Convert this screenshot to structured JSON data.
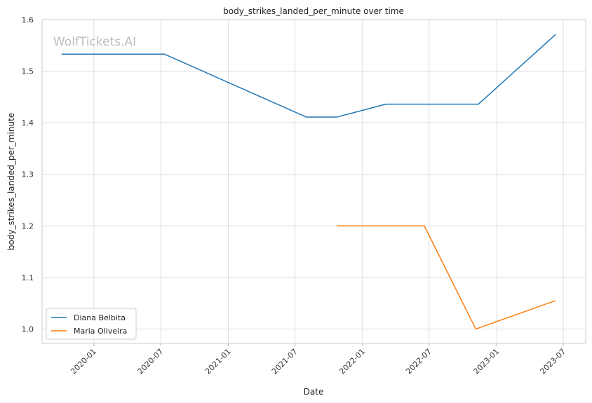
{
  "chart_data": {
    "type": "line",
    "title": "body_strikes_landed_per_minute over time",
    "xlabel": "Date",
    "ylabel": "body_strikes_landed_per_minute",
    "watermark": "WolfTickets.AI",
    "xlim": [
      "2019-08-13",
      "2023-08-31"
    ],
    "ylim": [
      0.972,
      1.6
    ],
    "x_ticks": [
      "2020-01",
      "2020-07",
      "2021-01",
      "2021-07",
      "2022-01",
      "2022-07",
      "2023-01",
      "2023-07"
    ],
    "y_ticks": [
      1.0,
      1.1,
      1.2,
      1.3,
      1.4,
      1.5,
      1.6
    ],
    "y_tick_labels": [
      "1.0",
      "1.1",
      "1.2",
      "1.3",
      "1.4",
      "1.5",
      "1.6"
    ],
    "grid": true,
    "legend_position": "lower-left",
    "series": [
      {
        "name": "Diana Belbita",
        "color": "#1f77b4",
        "x": [
          "2019-10-05",
          "2020-07-11",
          "2021-08-01",
          "2021-10-23",
          "2022-03-05",
          "2022-11-12",
          "2023-06-10"
        ],
        "y": [
          1.533,
          1.533,
          1.411,
          1.411,
          1.436,
          1.436,
          1.571
        ]
      },
      {
        "name": "Maria Oliveira",
        "color": "#ff7f0e",
        "x": [
          "2021-10-23",
          "2022-06-18",
          "2022-11-05",
          "2023-06-10"
        ],
        "y": [
          1.2,
          1.2,
          1.0,
          1.055
        ]
      }
    ]
  }
}
